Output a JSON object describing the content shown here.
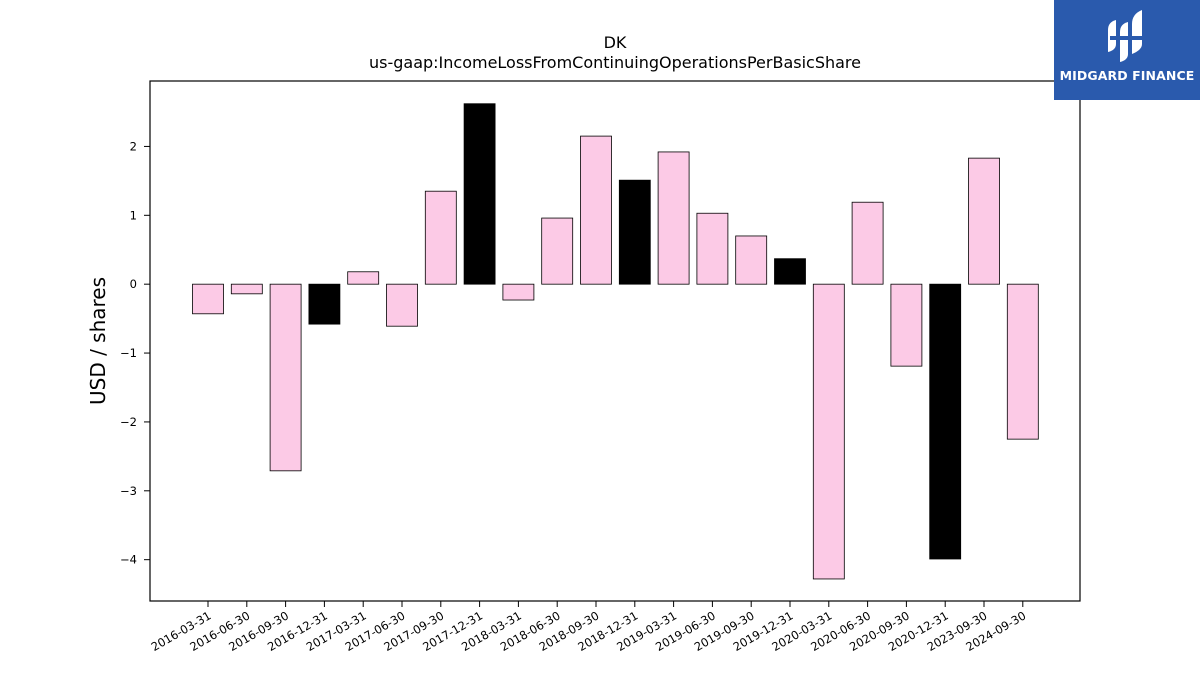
{
  "brand": {
    "name": "MIDGARD FINANCE",
    "background": "#2a5aad"
  },
  "colors": {
    "default_bar": "#fccae6",
    "highlight_bar": "#000000",
    "bar_edge": "#000000"
  },
  "chart_data": {
    "type": "bar",
    "title": "DK",
    "subtitle": "us-gaap:IncomeLossFromContinuingOperationsPerBasicShare",
    "xlabel": "",
    "ylabel": "USD / shares",
    "ylim": [
      -4.6,
      2.95
    ],
    "yticks": [
      -4,
      -3,
      -2,
      -1,
      0,
      1,
      2
    ],
    "ytick_labels": [
      "−4",
      "−3",
      "−2",
      "−1",
      "0",
      "1",
      "2"
    ],
    "grid": false,
    "categories": [
      "2016-03-31",
      "2016-06-30",
      "2016-09-30",
      "2016-12-31",
      "2017-03-31",
      "2017-06-30",
      "2017-09-30",
      "2017-12-31",
      "2018-03-31",
      "2018-06-30",
      "2018-09-30",
      "2018-12-31",
      "2019-03-31",
      "2019-06-30",
      "2019-09-30",
      "2019-12-31",
      "2020-03-31",
      "2020-06-30",
      "2020-09-30",
      "2020-12-31",
      "2023-09-30",
      "2024-09-30"
    ],
    "values": [
      -0.43,
      -0.14,
      -2.71,
      -0.58,
      0.18,
      -0.61,
      1.35,
      2.62,
      -0.23,
      0.96,
      2.15,
      1.51,
      1.92,
      1.03,
      0.7,
      0.37,
      -4.28,
      1.19,
      -1.19,
      -3.99,
      1.83,
      -2.25
    ],
    "highlight": [
      false,
      false,
      false,
      true,
      false,
      false,
      false,
      true,
      false,
      false,
      false,
      true,
      false,
      false,
      false,
      true,
      false,
      false,
      false,
      true,
      false,
      false
    ]
  }
}
